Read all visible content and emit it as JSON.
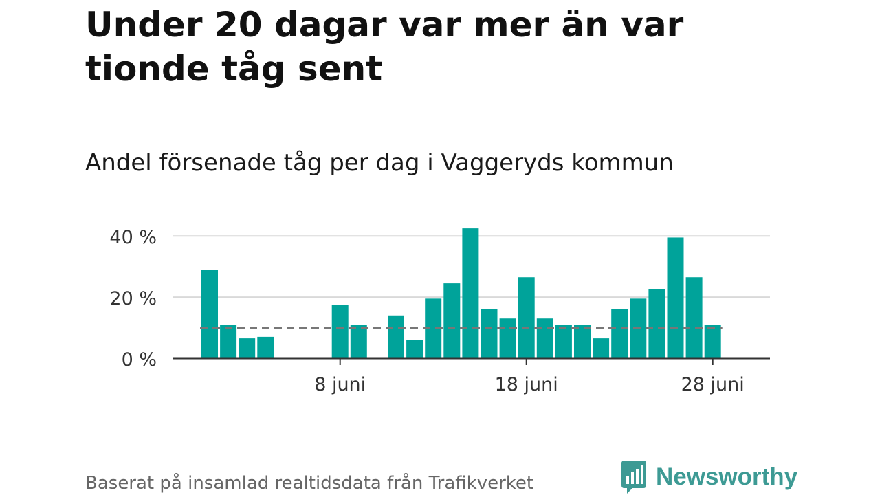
{
  "header": {
    "title": "Under 20 dagar var mer än var tionde tåg sent",
    "subtitle": "Andel försenade tåg per dag i Vaggeryds kommun"
  },
  "footer": {
    "source": "Baserat på insamlad realtidsdata från Trafikverket",
    "brand": "Newsworthy"
  },
  "colors": {
    "bar": "#00a39a",
    "reference_line": "#777777",
    "gridline": "#d9d9d9",
    "axis": "#333333",
    "brand": "#3d9a94"
  },
  "chart_data": {
    "type": "bar",
    "x_unit": "day of June",
    "x": [
      1,
      2,
      3,
      4,
      5,
      6,
      7,
      8,
      9,
      10,
      11,
      12,
      13,
      14,
      15,
      16,
      17,
      18,
      19,
      20,
      21,
      22,
      23,
      24,
      25,
      26,
      27,
      28,
      29,
      30
    ],
    "values": [
      29,
      11,
      6.5,
      7,
      null,
      null,
      null,
      17.5,
      11,
      null,
      14,
      6,
      19.5,
      24.5,
      42.5,
      16,
      13,
      26.5,
      13,
      11,
      11,
      6.5,
      16,
      19.5,
      22.5,
      39.5,
      26.5,
      11,
      null,
      null
    ],
    "ylim": [
      0,
      45
    ],
    "yticks": [
      0,
      20,
      40
    ],
    "ytick_labels": [
      "0 %",
      "20 %",
      "40 %"
    ],
    "xticks": [
      8,
      18,
      28
    ],
    "xtick_labels": [
      "8 juni",
      "18 juni",
      "28 juni"
    ],
    "reference_line": {
      "value": 10,
      "style": "dashed"
    },
    "grid": true,
    "legend": "none"
  }
}
